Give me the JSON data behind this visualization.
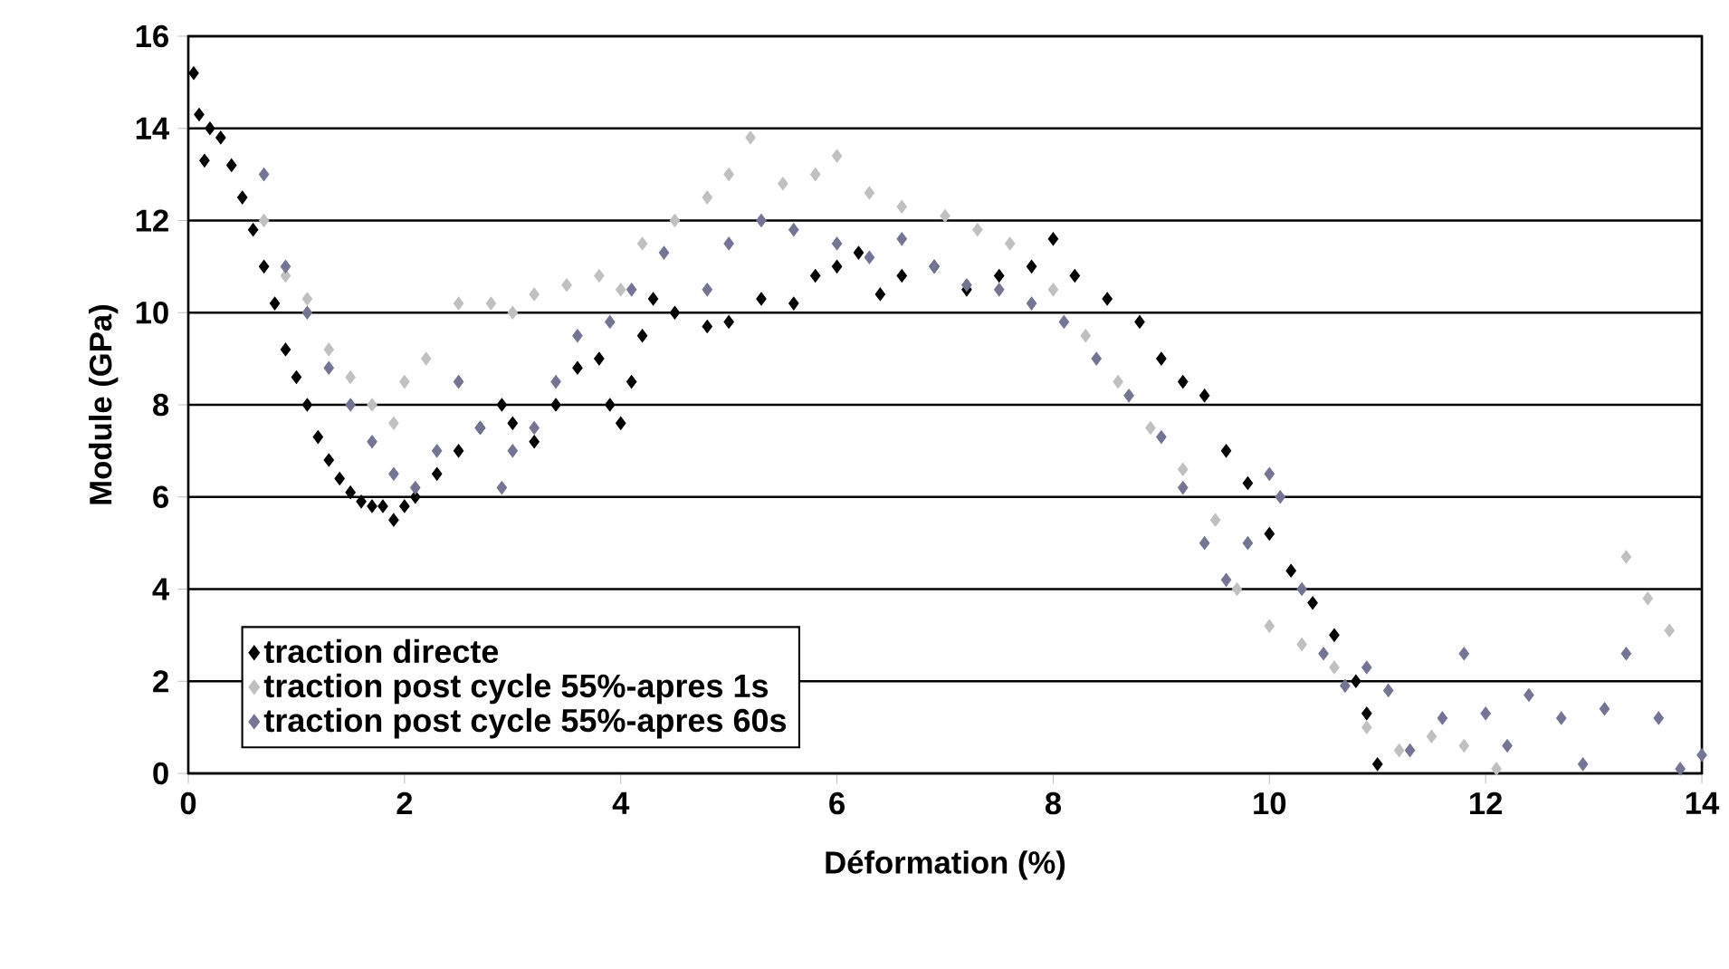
{
  "chart_data": {
    "type": "scatter",
    "xlabel": "Déformation (%)",
    "ylabel": "Module (GPa)",
    "xlim": [
      0,
      14
    ],
    "ylim": [
      0,
      16
    ],
    "xticks": [
      0,
      2,
      4,
      6,
      8,
      10,
      12,
      14
    ],
    "yticks": [
      0,
      2,
      4,
      6,
      8,
      10,
      12,
      14,
      16
    ],
    "grid": "y",
    "legend": "bottom left",
    "marker": "diamond",
    "series": [
      {
        "name": "traction directe",
        "color": "#000000",
        "x": [
          0.05,
          0.1,
          0.15,
          0.2,
          0.3,
          0.4,
          0.5,
          0.6,
          0.7,
          0.8,
          0.9,
          1.0,
          1.1,
          1.2,
          1.3,
          1.4,
          1.5,
          1.6,
          1.7,
          1.8,
          1.9,
          2.0,
          2.1,
          2.3,
          2.5,
          2.7,
          2.9,
          3.0,
          3.2,
          3.4,
          3.6,
          3.8,
          3.9,
          4.0,
          4.1,
          4.2,
          4.3,
          4.5,
          4.8,
          5.0,
          5.3,
          5.6,
          5.8,
          6.0,
          6.2,
          6.4,
          6.6,
          6.9,
          7.2,
          7.5,
          7.8,
          8.0,
          8.2,
          8.5,
          8.8,
          9.0,
          9.2,
          9.4,
          9.6,
          9.8,
          10.0,
          10.2,
          10.4,
          10.6,
          10.8,
          10.9,
          11.0
        ],
        "values": [
          15.2,
          14.3,
          13.3,
          14.0,
          13.8,
          13.2,
          12.5,
          11.8,
          11.0,
          10.2,
          9.2,
          8.6,
          8.0,
          7.3,
          6.8,
          6.4,
          6.1,
          5.9,
          5.8,
          5.8,
          5.5,
          5.8,
          6.0,
          6.5,
          7.0,
          7.5,
          8.0,
          7.6,
          7.2,
          8.0,
          8.8,
          9.0,
          8.0,
          7.6,
          8.5,
          9.5,
          10.3,
          10.0,
          9.7,
          9.8,
          10.3,
          10.2,
          10.8,
          11.0,
          11.3,
          10.4,
          10.8,
          11.0,
          10.5,
          10.8,
          11.0,
          11.6,
          10.8,
          10.3,
          9.8,
          9.0,
          8.5,
          8.2,
          7.0,
          6.3,
          5.2,
          4.4,
          3.7,
          3.0,
          2.0,
          1.3,
          0.2
        ]
      },
      {
        "name": "traction post cycle 55%-apres 1s",
        "color": "#c0c0c0",
        "x": [
          0.7,
          0.9,
          1.1,
          1.3,
          1.5,
          1.7,
          1.9,
          2.0,
          2.2,
          2.5,
          2.8,
          3.0,
          3.2,
          3.5,
          3.8,
          4.0,
          4.2,
          4.5,
          4.8,
          5.0,
          5.2,
          5.5,
          5.8,
          6.0,
          6.3,
          6.6,
          7.0,
          7.3,
          7.6,
          8.0,
          8.3,
          8.6,
          8.9,
          9.2,
          9.5,
          9.7,
          10.0,
          10.3,
          10.6,
          10.9,
          11.2,
          11.5,
          11.8,
          12.1,
          13.3,
          13.5,
          13.7
        ],
        "values": [
          12.0,
          10.8,
          10.3,
          9.2,
          8.6,
          8.0,
          7.6,
          8.5,
          9.0,
          10.2,
          10.2,
          10.0,
          10.4,
          10.6,
          10.8,
          10.5,
          11.5,
          12.0,
          12.5,
          13.0,
          13.8,
          12.8,
          13.0,
          13.4,
          12.6,
          12.3,
          12.1,
          11.8,
          11.5,
          10.5,
          9.5,
          8.5,
          7.5,
          6.6,
          5.5,
          4.0,
          3.2,
          2.8,
          2.3,
          1.0,
          0.5,
          0.8,
          0.6,
          0.1,
          4.7,
          3.8,
          3.1
        ]
      },
      {
        "name": "traction post cycle 55%-apres 60s",
        "color": "#747494",
        "x": [
          0.7,
          0.9,
          1.1,
          1.3,
          1.5,
          1.7,
          1.9,
          2.1,
          2.3,
          2.5,
          2.7,
          2.9,
          3.0,
          3.2,
          3.4,
          3.6,
          3.9,
          4.1,
          4.4,
          4.8,
          5.0,
          5.3,
          5.6,
          6.0,
          6.3,
          6.6,
          6.9,
          7.2,
          7.5,
          7.8,
          8.1,
          8.4,
          8.7,
          9.0,
          9.2,
          9.4,
          9.6,
          9.8,
          10.0,
          10.1,
          10.3,
          10.5,
          10.7,
          10.9,
          11.1,
          11.3,
          11.6,
          11.8,
          12.0,
          12.2,
          12.4,
          12.7,
          12.9,
          13.1,
          13.3,
          13.6,
          13.8,
          14.0
        ],
        "values": [
          13.0,
          11.0,
          10.0,
          8.8,
          8.0,
          7.2,
          6.5,
          6.2,
          7.0,
          8.5,
          7.5,
          6.2,
          7.0,
          7.5,
          8.5,
          9.5,
          9.8,
          10.5,
          11.3,
          10.5,
          11.5,
          12.0,
          11.8,
          11.5,
          11.2,
          11.6,
          11.0,
          10.6,
          10.5,
          10.2,
          9.8,
          9.0,
          8.2,
          7.3,
          6.2,
          5.0,
          4.2,
          5.0,
          6.5,
          6.0,
          4.0,
          2.6,
          1.9,
          2.3,
          1.8,
          0.5,
          1.2,
          2.6,
          1.3,
          0.6,
          1.7,
          1.2,
          0.2,
          1.4,
          2.6,
          1.2,
          0.1,
          0.4
        ]
      }
    ]
  }
}
